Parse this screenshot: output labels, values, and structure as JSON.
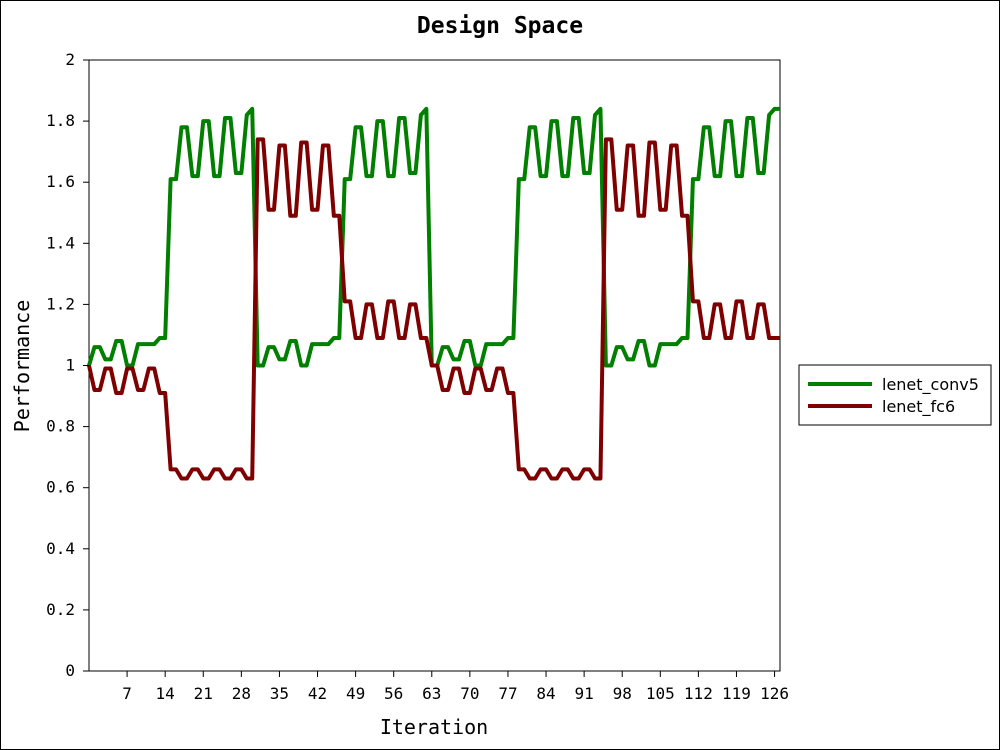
{
  "chart_data": {
    "type": "line",
    "title": "Design Space",
    "xlabel": "Iteration",
    "ylabel": "Performance",
    "xlim": [
      0,
      127
    ],
    "ylim": [
      0,
      2
    ],
    "xticks": [
      7,
      14,
      21,
      28,
      35,
      42,
      49,
      56,
      63,
      70,
      77,
      84,
      91,
      98,
      105,
      112,
      119,
      126
    ],
    "yticks": [
      0,
      0.2,
      0.4,
      0.6,
      0.8,
      1,
      1.2,
      1.4,
      1.6,
      1.8,
      2
    ],
    "ytick_labels": [
      "0",
      "0.2",
      "0.4",
      "0.6",
      "0.8",
      "1",
      "1.2",
      "1.4",
      "1.6",
      "1.8",
      "2"
    ],
    "grid": false,
    "legend_position": "right",
    "series": [
      {
        "name": "lenet_conv5",
        "color": "#007f00",
        "x": [
          0,
          1,
          2,
          3,
          4,
          5,
          6,
          7,
          8,
          9,
          10,
          11,
          12,
          13,
          14,
          15,
          16,
          17,
          18,
          19,
          20,
          21,
          22,
          23,
          24,
          25,
          26,
          27,
          28,
          29,
          30,
          31,
          32,
          33,
          34,
          35,
          36,
          37,
          38,
          39,
          40,
          41,
          42,
          43,
          44,
          45,
          46,
          47,
          48,
          49,
          50,
          51,
          52,
          53,
          54,
          55,
          56,
          57,
          58,
          59,
          60,
          61,
          62,
          63,
          64,
          65,
          66,
          67,
          68,
          69,
          70,
          71,
          72,
          73,
          74,
          75,
          76,
          77,
          78,
          79,
          80,
          81,
          82,
          83,
          84,
          85,
          86,
          87,
          88,
          89,
          90,
          91,
          92,
          93,
          94,
          95,
          96,
          97,
          98,
          99,
          100,
          101,
          102,
          103,
          104,
          105,
          106,
          107,
          108,
          109,
          110,
          111,
          112,
          113,
          114,
          115,
          116,
          117,
          118,
          119,
          120,
          121,
          122,
          123,
          124,
          125,
          126,
          127
        ],
        "values": [
          1.0,
          1.06,
          1.06,
          1.02,
          1.02,
          1.08,
          1.08,
          1.0,
          1.0,
          1.07,
          1.07,
          1.07,
          1.07,
          1.09,
          1.09,
          1.61,
          1.61,
          1.78,
          1.78,
          1.62,
          1.62,
          1.8,
          1.8,
          1.62,
          1.62,
          1.81,
          1.81,
          1.63,
          1.63,
          1.82,
          1.84,
          1.0,
          1.0,
          1.06,
          1.06,
          1.02,
          1.02,
          1.08,
          1.08,
          1.0,
          1.0,
          1.07,
          1.07,
          1.07,
          1.07,
          1.09,
          1.09,
          1.61,
          1.61,
          1.78,
          1.78,
          1.62,
          1.62,
          1.8,
          1.8,
          1.62,
          1.62,
          1.81,
          1.81,
          1.63,
          1.63,
          1.82,
          1.84,
          1.0,
          1.0,
          1.06,
          1.06,
          1.02,
          1.02,
          1.08,
          1.08,
          1.0,
          1.0,
          1.07,
          1.07,
          1.07,
          1.07,
          1.09,
          1.09,
          1.61,
          1.61,
          1.78,
          1.78,
          1.62,
          1.62,
          1.8,
          1.8,
          1.62,
          1.62,
          1.81,
          1.81,
          1.63,
          1.63,
          1.82,
          1.84,
          1.0,
          1.0,
          1.06,
          1.06,
          1.02,
          1.02,
          1.08,
          1.08,
          1.0,
          1.0,
          1.07,
          1.07,
          1.07,
          1.07,
          1.09,
          1.09,
          1.61,
          1.61,
          1.78,
          1.78,
          1.62,
          1.62,
          1.8,
          1.8,
          1.62,
          1.62,
          1.81,
          1.81,
          1.63,
          1.63,
          1.82,
          1.84,
          1.84
        ]
      },
      {
        "name": "lenet_fc6",
        "color": "#7f0000",
        "x": [
          0,
          1,
          2,
          3,
          4,
          5,
          6,
          7,
          8,
          9,
          10,
          11,
          12,
          13,
          14,
          15,
          16,
          17,
          18,
          19,
          20,
          21,
          22,
          23,
          24,
          25,
          26,
          27,
          28,
          29,
          30,
          31,
          32,
          33,
          34,
          35,
          36,
          37,
          38,
          39,
          40,
          41,
          42,
          43,
          44,
          45,
          46,
          47,
          48,
          49,
          50,
          51,
          52,
          53,
          54,
          55,
          56,
          57,
          58,
          59,
          60,
          61,
          62,
          63,
          64,
          65,
          66,
          67,
          68,
          69,
          70,
          71,
          72,
          73,
          74,
          75,
          76,
          77,
          78,
          79,
          80,
          81,
          82,
          83,
          84,
          85,
          86,
          87,
          88,
          89,
          90,
          91,
          92,
          93,
          94,
          95,
          96,
          97,
          98,
          99,
          100,
          101,
          102,
          103,
          104,
          105,
          106,
          107,
          108,
          109,
          110,
          111,
          112,
          113,
          114,
          115,
          116,
          117,
          118,
          119,
          120,
          121,
          122,
          123,
          124,
          125,
          126,
          127
        ],
        "values": [
          1.0,
          0.92,
          0.92,
          0.99,
          0.99,
          0.91,
          0.91,
          0.99,
          0.99,
          0.92,
          0.92,
          0.99,
          0.99,
          0.91,
          0.91,
          0.66,
          0.66,
          0.63,
          0.63,
          0.66,
          0.66,
          0.63,
          0.63,
          0.66,
          0.66,
          0.63,
          0.63,
          0.66,
          0.66,
          0.63,
          0.63,
          1.74,
          1.74,
          1.51,
          1.51,
          1.72,
          1.72,
          1.49,
          1.49,
          1.73,
          1.73,
          1.51,
          1.51,
          1.72,
          1.72,
          1.49,
          1.49,
          1.21,
          1.21,
          1.09,
          1.09,
          1.2,
          1.2,
          1.09,
          1.09,
          1.21,
          1.21,
          1.09,
          1.09,
          1.2,
          1.2,
          1.09,
          1.09,
          1.0,
          1.0,
          0.92,
          0.92,
          0.99,
          0.99,
          0.91,
          0.91,
          0.99,
          0.99,
          0.92,
          0.92,
          0.99,
          0.99,
          0.91,
          0.91,
          0.66,
          0.66,
          0.63,
          0.63,
          0.66,
          0.66,
          0.63,
          0.63,
          0.66,
          0.66,
          0.63,
          0.63,
          0.66,
          0.66,
          0.63,
          0.63,
          1.74,
          1.74,
          1.51,
          1.51,
          1.72,
          1.72,
          1.49,
          1.49,
          1.73,
          1.73,
          1.51,
          1.51,
          1.72,
          1.72,
          1.49,
          1.49,
          1.21,
          1.21,
          1.09,
          1.09,
          1.2,
          1.2,
          1.09,
          1.09,
          1.21,
          1.21,
          1.09,
          1.09,
          1.2,
          1.2,
          1.09,
          1.09,
          1.09
        ]
      }
    ]
  }
}
